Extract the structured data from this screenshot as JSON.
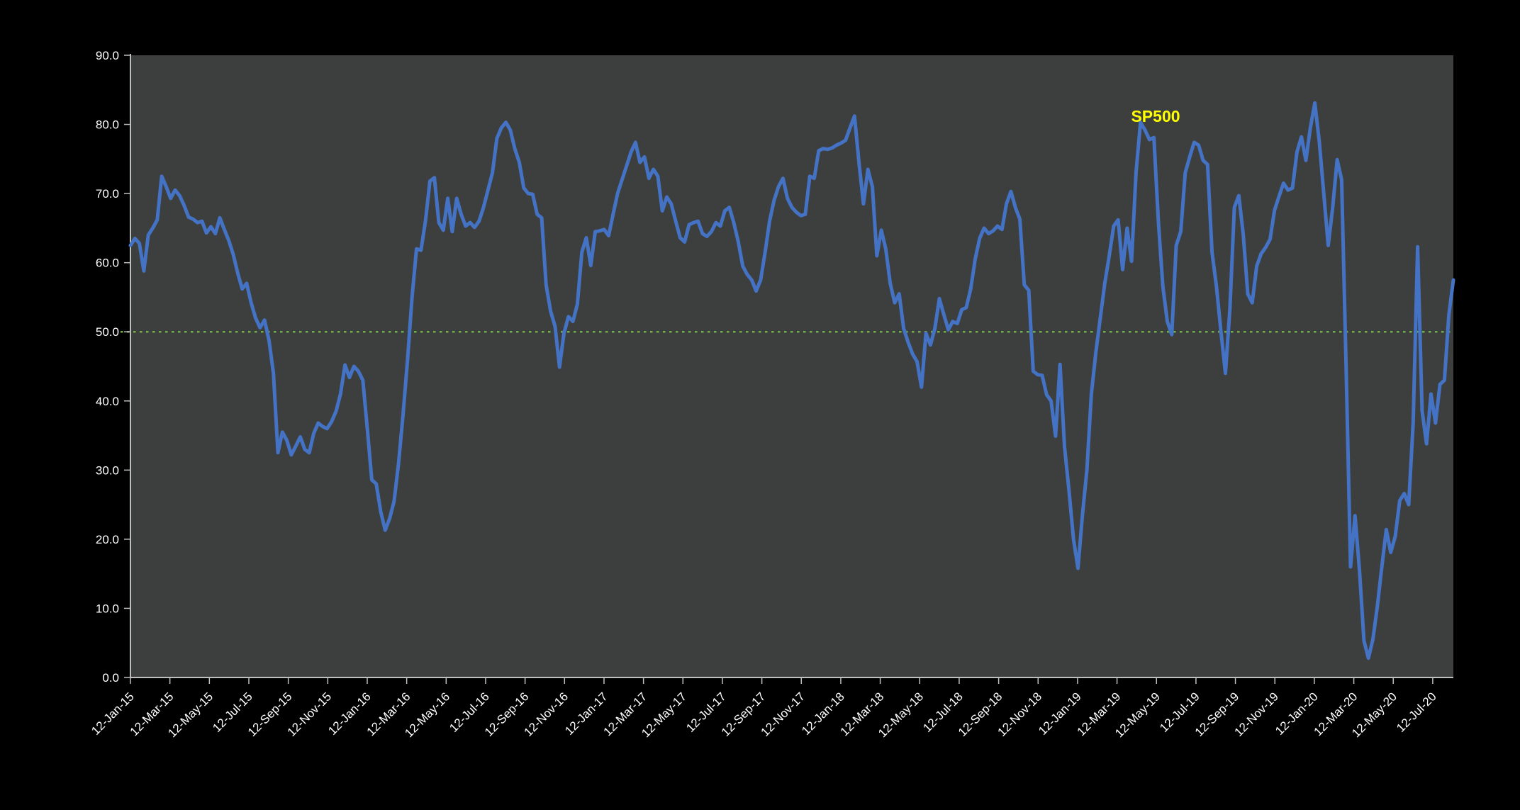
{
  "page_bg": "#000000",
  "plot_bg": "#3d3f3e",
  "axis_color": "#bfbfbf",
  "tick_label_color": "#ffffff",
  "chart_data": {
    "type": "line",
    "title": "",
    "series_label": "SP500",
    "series_label_color": "#ffff00",
    "line_color": "#4472c4",
    "line_width": 5,
    "reference_line": {
      "value": 50.0,
      "color": "#70ad47",
      "style": "dotted"
    },
    "ylim": [
      0,
      90
    ],
    "grid": "off",
    "legend_position": "annotation-top-right",
    "y_tick_labels": [
      "0.0",
      "10.0",
      "20.0",
      "30.0",
      "40.0",
      "50.0",
      "60.0",
      "70.0",
      "80.0",
      "90.0"
    ],
    "x_tick_labels": [
      "12-Jan-15",
      "12-Mar-15",
      "12-May-15",
      "12-Jul-15",
      "12-Sep-15",
      "12-Nov-15",
      "12-Jan-16",
      "12-Mar-16",
      "12-May-16",
      "12-Jul-16",
      "12-Sep-16",
      "12-Nov-16",
      "12-Jan-17",
      "12-Mar-17",
      "12-May-17",
      "12-Jul-17",
      "12-Sep-17",
      "12-Nov-17",
      "12-Jan-18",
      "12-Mar-18",
      "12-May-18",
      "12-Jul-18",
      "12-Sep-18",
      "12-Nov-18",
      "12-Jan-19",
      "12-Mar-19",
      "12-May-19",
      "12-Jul-19",
      "12-Sep-19",
      "12-Nov-19",
      "12-Jan-20",
      "12-Mar-20",
      "12-May-20",
      "12-Jul-20"
    ],
    "x_start": "12-Jan-15",
    "x_frequency": "weekly",
    "values": [
      62.5,
      63.5,
      62.8,
      58.8,
      64,
      65,
      66.2,
      72.5,
      71,
      69.3,
      70.5,
      69.7,
      68.3,
      66.6,
      66.3,
      65.8,
      66,
      64.3,
      65.2,
      64.2,
      66.5,
      64.8,
      63.2,
      61.2,
      58.5,
      56.2,
      57,
      54.2,
      52,
      50.6,
      51.7,
      48.8,
      44,
      32.5,
      35.5,
      34.3,
      32.2,
      33.5,
      34.8,
      33,
      32.5,
      35.3,
      36.8,
      36.3,
      36,
      37,
      38.5,
      41,
      45.2,
      43.4,
      45,
      44.3,
      43,
      36,
      28.6,
      28,
      24,
      21.3,
      23,
      25.5,
      31,
      38,
      46,
      55,
      62,
      61.8,
      66,
      71.8,
      72.3,
      65.8,
      64.7,
      69.3,
      64.5,
      69.3,
      67,
      65.3,
      65.8,
      65.1,
      66,
      68,
      70.5,
      73,
      78,
      79.5,
      80.3,
      79.2,
      76.5,
      74.5,
      70.8,
      70,
      69.9,
      67,
      66.5,
      56.8,
      53,
      50.8,
      44.9,
      49.8,
      52.2,
      51.5,
      54,
      61.5,
      63.6,
      59.6,
      64.5,
      64.6,
      64.8,
      63.9,
      67,
      70,
      72,
      74,
      76,
      77.4,
      74.5,
      75.3,
      72.2,
      73.5,
      72.5,
      67.5,
      69.5,
      68.5,
      66,
      63.6,
      63,
      65.5,
      65.8,
      66,
      64.2,
      63.8,
      64.5,
      65.8,
      65.3,
      67.5,
      68,
      65.8,
      63,
      59.5,
      58.3,
      57.5,
      55.9,
      57.5,
      61.5,
      66,
      69,
      71,
      72.2,
      69.3,
      68,
      67.3,
      66.8,
      67,
      72.5,
      72.2,
      76.2,
      76.5,
      76.4,
      76.6,
      77,
      77.3,
      77.7,
      79.5,
      81.2,
      74.5,
      68.5,
      73.5,
      71,
      61,
      64.7,
      62,
      57,
      54.2,
      55.5,
      50.5,
      48.5,
      46.8,
      45.7,
      42,
      49.8,
      48.1,
      50.5,
      54.8,
      52.5,
      50.3,
      51.5,
      51.2,
      53.2,
      53.5,
      56.2,
      60.5,
      63.5,
      65,
      64.2,
      64.6,
      65.3,
      64.8,
      68.5,
      70.3,
      68,
      66.3,
      56.8,
      56,
      44.3,
      43.8,
      43.7,
      40.9,
      40,
      34.9,
      45.3,
      33.4,
      27,
      20,
      15.8,
      23.5,
      30,
      41,
      47,
      52,
      57,
      61,
      65.3,
      66.2,
      59,
      65,
      60.2,
      73,
      80.3,
      79.2,
      77.8,
      78.1,
      66,
      56.6,
      51.5,
      49.6,
      62.5,
      64.5,
      73,
      75.3,
      77.4,
      77,
      74.8,
      74.2,
      61.5,
      56.5,
      50,
      44,
      53.3,
      68,
      69.7,
      64,
      55.5,
      54.2,
      59.5,
      61.3,
      62.2,
      63.4,
      67.6,
      69.6,
      71.5,
      70.5,
      70.8,
      76,
      78.2,
      74.8,
      79.5,
      83.1,
      77.5,
      70,
      62.5,
      68,
      74.9,
      72,
      45,
      16,
      23.4,
      15.5,
      5.3,
      2.8,
      5.5,
      10.3,
      16,
      21.4,
      18.1,
      20.4,
      25.6,
      26.6,
      25,
      36.8,
      62.3,
      38.6,
      33.8,
      41,
      36.8,
      42.4,
      43,
      52.5,
      57.5
    ]
  }
}
